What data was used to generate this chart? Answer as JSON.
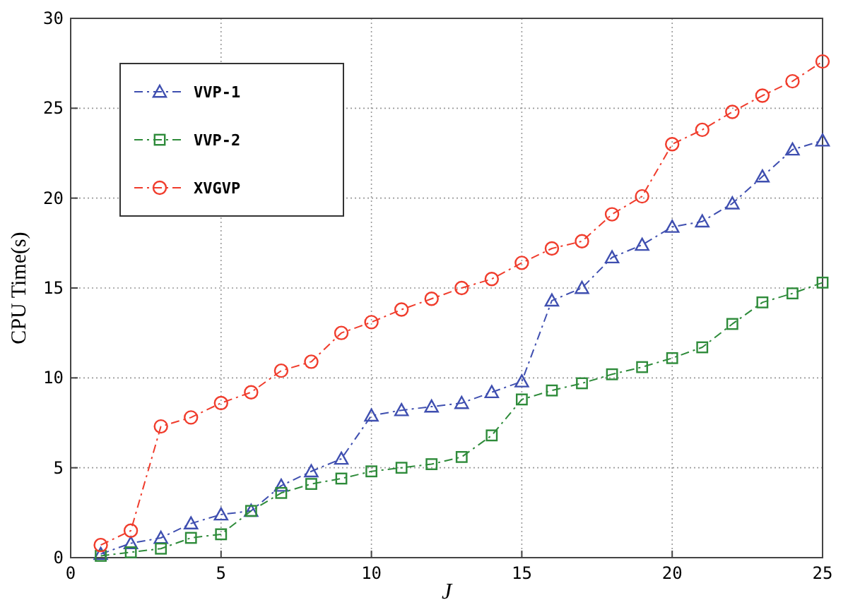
{
  "chart_data": {
    "type": "line",
    "xlabel": "J",
    "ylabel": "CPU Time(s)",
    "x": [
      1,
      2,
      3,
      4,
      5,
      6,
      7,
      8,
      9,
      10,
      11,
      12,
      13,
      14,
      15,
      16,
      17,
      18,
      19,
      20,
      21,
      22,
      23,
      24,
      25
    ],
    "series": [
      {
        "name": "VVP-1",
        "color": "#3f4fb0",
        "marker": "triangle",
        "values": [
          0.2,
          0.8,
          1.1,
          1.9,
          2.4,
          2.6,
          4.0,
          4.8,
          5.5,
          7.9,
          8.2,
          8.4,
          8.6,
          9.2,
          9.8,
          14.3,
          15.0,
          16.7,
          17.4,
          18.4,
          18.7,
          19.7,
          21.2,
          22.7,
          23.2
        ]
      },
      {
        "name": "VVP-2",
        "color": "#2e8b3a",
        "marker": "square",
        "values": [
          0.1,
          0.3,
          0.5,
          1.1,
          1.3,
          2.6,
          3.6,
          4.1,
          4.4,
          4.8,
          5.0,
          5.2,
          5.6,
          6.8,
          8.8,
          9.3,
          9.7,
          10.2,
          10.6,
          11.1,
          11.7,
          13.0,
          14.2,
          14.7,
          15.3
        ]
      },
      {
        "name": "XVGVP",
        "color": "#f03c2c",
        "marker": "circle",
        "values": [
          0.7,
          1.5,
          7.3,
          7.8,
          8.6,
          9.2,
          10.4,
          10.9,
          12.5,
          13.1,
          13.8,
          14.4,
          15.0,
          15.5,
          16.4,
          17.2,
          17.6,
          19.1,
          20.1,
          23.0,
          23.8,
          24.8,
          25.7,
          26.5,
          27.6
        ]
      }
    ],
    "xlim": [
      0,
      25
    ],
    "xticks": [
      0,
      5,
      10,
      15,
      20,
      25
    ],
    "ylim": [
      0,
      30
    ],
    "yticks": [
      0,
      5,
      10,
      15,
      20,
      25,
      30
    ],
    "grid": true,
    "legend": "top left",
    "line_style": "dashed"
  }
}
